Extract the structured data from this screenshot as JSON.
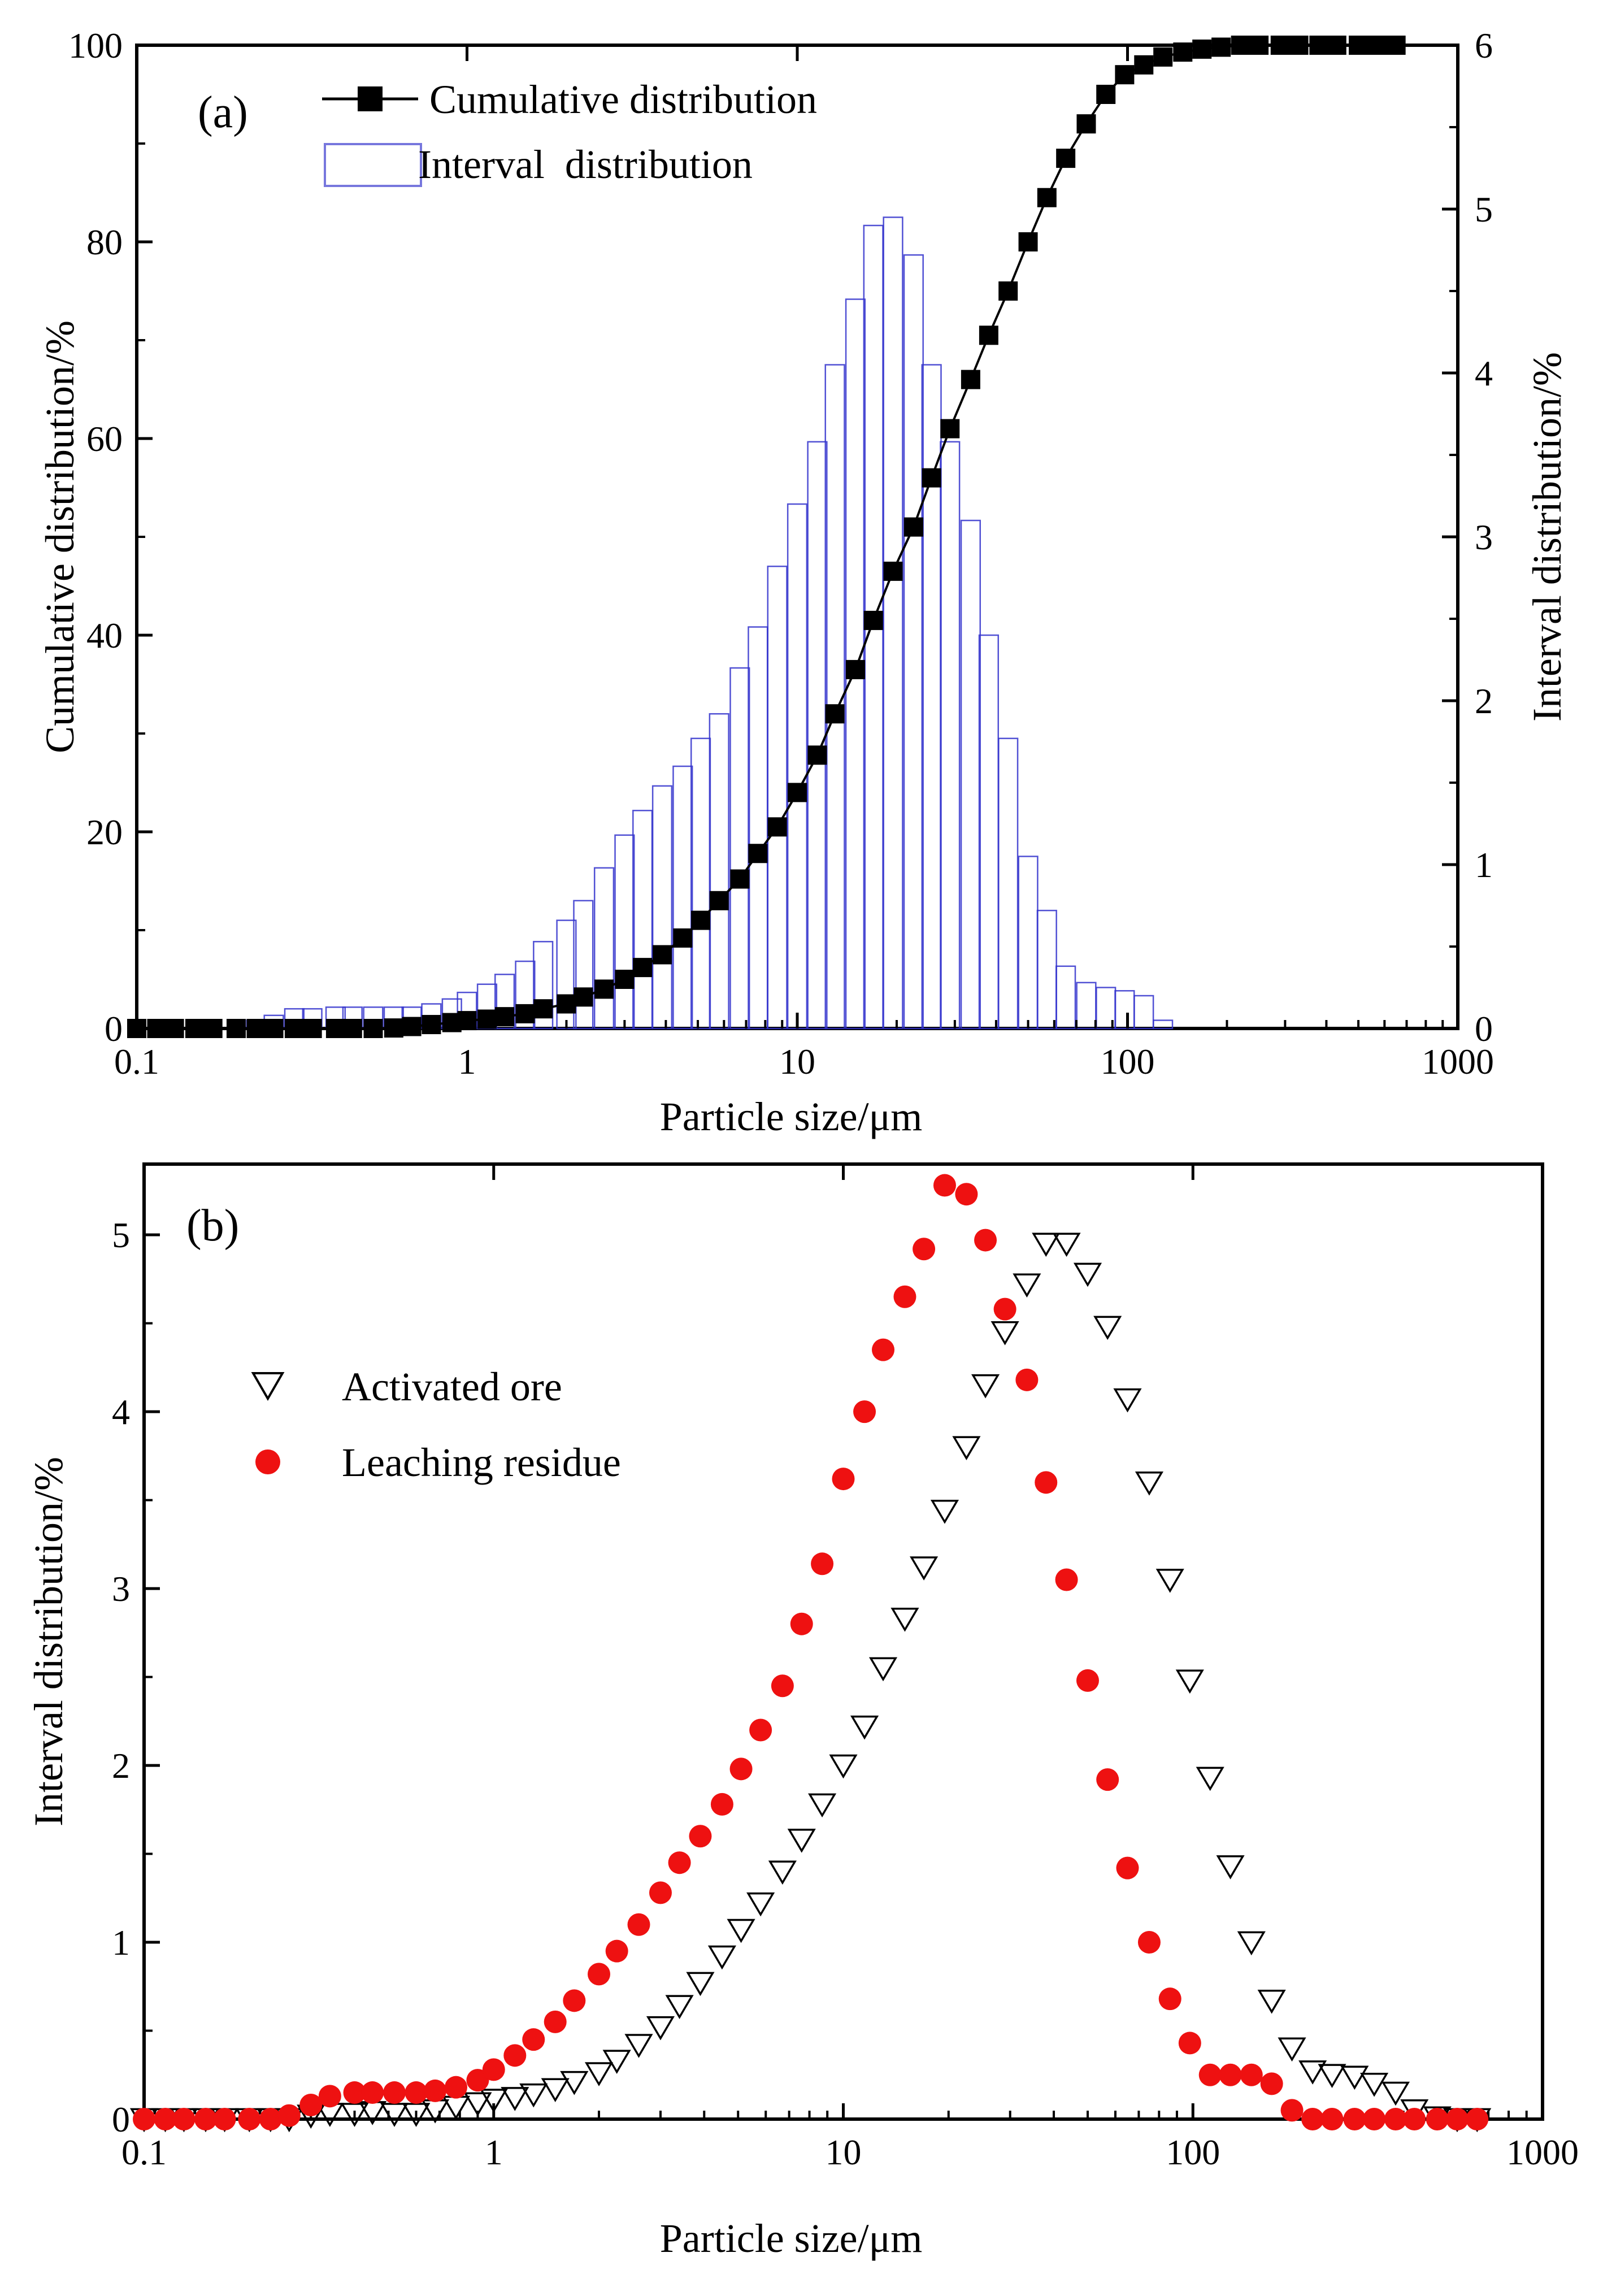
{
  "chart_data": [
    {
      "panel": "(a)",
      "type": "bar+line",
      "xlabel": "Particle size/μm",
      "ylabel": "Cumulative distribution/%",
      "y2label": "Interval distribution/%",
      "xscale": "log",
      "xlim": [
        0.1,
        1000
      ],
      "ylim": [
        0,
        100
      ],
      "y2lim": [
        0,
        6
      ],
      "xticks": [
        0.1,
        1,
        10,
        100,
        1000
      ],
      "xtick_labels": [
        "0.1",
        "1",
        "10",
        "100",
        "1000"
      ],
      "yticks": [
        0,
        20,
        40,
        60,
        80,
        100
      ],
      "ytick_labels": [
        "0",
        "20",
        "40",
        "60",
        "80",
        "100"
      ],
      "y2ticks": [
        0,
        1,
        2,
        3,
        4,
        5,
        6
      ],
      "y2tick_labels": [
        "0",
        "1",
        "2",
        "3",
        "4",
        "5",
        "6"
      ],
      "legend": {
        "position": "top-left",
        "entries": [
          "Cumulative distribution",
          "Interval  distribution"
        ]
      },
      "series": [
        {
          "name": "Cumulative distribution",
          "kind": "line+square-markers",
          "color": "#000000",
          "x": [
            0.1,
            0.115,
            0.13,
            0.15,
            0.17,
            0.2,
            0.23,
            0.26,
            0.3,
            0.34,
            0.4,
            0.45,
            0.52,
            0.6,
            0.68,
            0.78,
            0.9,
            1.0,
            1.15,
            1.3,
            1.5,
            1.7,
            2.0,
            2.25,
            2.6,
            3.0,
            3.4,
            3.9,
            4.5,
            5.1,
            5.8,
            6.7,
            7.6,
            8.7,
            10,
            11.5,
            13,
            15,
            17,
            19.5,
            22.5,
            25.5,
            29,
            33.5,
            38,
            43.5,
            50,
            57,
            65,
            75,
            86,
            98,
            112,
            128,
            147,
            168,
            192,
            220,
            250,
            290,
            330,
            380,
            430,
            500,
            570,
            650
          ],
          "values": [
            0,
            0,
            0,
            0,
            0,
            0,
            0,
            0,
            0,
            0,
            0,
            0,
            0,
            0.05,
            0.2,
            0.4,
            0.6,
            0.8,
            0.95,
            1.2,
            1.5,
            2.0,
            2.5,
            3.2,
            4.0,
            5.0,
            6.2,
            7.5,
            9.2,
            11.0,
            13.0,
            15.2,
            17.8,
            20.5,
            24.0,
            27.8,
            32.0,
            36.5,
            41.5,
            46.5,
            51.0,
            56.0,
            61.0,
            66.0,
            70.5,
            75.0,
            80.0,
            84.5,
            88.5,
            92.0,
            95.0,
            97.0,
            98.0,
            98.8,
            99.3,
            99.6,
            99.8,
            100,
            100,
            100,
            100,
            100,
            100,
            100,
            100,
            100
          ]
        },
        {
          "name": "Interval  distribution",
          "kind": "bar",
          "color": "#3333cc",
          "x": [
            0.1,
            0.115,
            0.13,
            0.15,
            0.17,
            0.2,
            0.23,
            0.26,
            0.3,
            0.34,
            0.4,
            0.45,
            0.52,
            0.6,
            0.68,
            0.78,
            0.9,
            1.0,
            1.15,
            1.3,
            1.5,
            1.7,
            2.0,
            2.25,
            2.6,
            3.0,
            3.4,
            3.9,
            4.5,
            5.1,
            5.8,
            6.7,
            7.6,
            8.7,
            10,
            11.5,
            13,
            15,
            17,
            19.5,
            22.5,
            25.5,
            29,
            33.5,
            38,
            43.5,
            50,
            57,
            65,
            75,
            86,
            98,
            112,
            128,
            147,
            168,
            192,
            220,
            250,
            290,
            330,
            380,
            430,
            500,
            570,
            650
          ],
          "values": [
            0,
            0,
            0,
            0,
            0,
            0,
            0.05,
            0.08,
            0.12,
            0.12,
            0.13,
            0.13,
            0.13,
            0.13,
            0.13,
            0.15,
            0.18,
            0.22,
            0.27,
            0.33,
            0.41,
            0.53,
            0.66,
            0.78,
            0.98,
            1.18,
            1.33,
            1.48,
            1.6,
            1.77,
            1.92,
            2.2,
            2.45,
            2.82,
            3.2,
            3.58,
            4.05,
            4.45,
            4.9,
            4.95,
            4.72,
            4.05,
            3.58,
            3.1,
            2.4,
            1.77,
            1.05,
            0.72,
            0.38,
            0.28,
            0.25,
            0.23,
            0.2,
            0.05,
            0,
            0,
            0,
            0,
            0,
            0,
            0,
            0,
            0,
            0,
            0,
            0
          ]
        }
      ]
    },
    {
      "panel": "(b)",
      "type": "scatter",
      "xlabel": "Particle size/μm",
      "ylabel": "Interval distribution/%",
      "xscale": "log",
      "xlim": [
        0.1,
        1000
      ],
      "ylim": [
        0,
        5.4
      ],
      "xticks": [
        0.1,
        1,
        10,
        100,
        1000
      ],
      "xtick_labels": [
        "0.1",
        "1",
        "10",
        "100",
        "1000"
      ],
      "yticks": [
        0,
        1,
        2,
        3,
        4,
        5
      ],
      "ytick_labels": [
        "0",
        "1",
        "2",
        "3",
        "4",
        "5"
      ],
      "legend": {
        "position": "middle-left",
        "entries": [
          "Activated ore",
          "Leaching residue"
        ]
      },
      "series": [
        {
          "name": "Activated ore",
          "marker": "open-down-triangle",
          "color": "#000000",
          "x": [
            0.1,
            0.115,
            0.13,
            0.15,
            0.17,
            0.2,
            0.23,
            0.26,
            0.3,
            0.34,
            0.4,
            0.45,
            0.52,
            0.6,
            0.68,
            0.78,
            0.9,
            1.0,
            1.15,
            1.3,
            1.5,
            1.7,
            2.0,
            2.25,
            2.6,
            3.0,
            3.4,
            3.9,
            4.5,
            5.1,
            5.8,
            6.7,
            7.6,
            8.7,
            10,
            11.5,
            13,
            15,
            17,
            19.5,
            22.5,
            25.5,
            29,
            33.5,
            38,
            43.5,
            50,
            57,
            65,
            75,
            86,
            98,
            112,
            128,
            147,
            168,
            192,
            220,
            250,
            290,
            330,
            380,
            430,
            500,
            570,
            650
          ],
          "values": [
            0,
            0,
            0,
            0,
            0,
            0,
            0,
            0,
            0.02,
            0.03,
            0.03,
            0.04,
            0.03,
            0.03,
            0.05,
            0.07,
            0.09,
            0.11,
            0.12,
            0.14,
            0.17,
            0.21,
            0.26,
            0.33,
            0.42,
            0.52,
            0.64,
            0.77,
            0.92,
            1.07,
            1.22,
            1.4,
            1.58,
            1.78,
            2.0,
            2.22,
            2.55,
            2.83,
            3.12,
            3.44,
            3.8,
            4.15,
            4.45,
            4.72,
            4.95,
            4.95,
            4.78,
            4.48,
            4.07,
            3.6,
            3.05,
            2.48,
            1.93,
            1.43,
            1.0,
            0.67,
            0.4,
            0.27,
            0.25,
            0.24,
            0.2,
            0.15,
            0.05,
            0.01,
            0,
            0
          ]
        },
        {
          "name": "Leaching residue",
          "marker": "filled-circle",
          "color": "#ee1111",
          "x": [
            0.1,
            0.115,
            0.13,
            0.15,
            0.17,
            0.2,
            0.23,
            0.26,
            0.3,
            0.34,
            0.4,
            0.45,
            0.52,
            0.6,
            0.68,
            0.78,
            0.9,
            1.0,
            1.15,
            1.3,
            1.5,
            1.7,
            2.0,
            2.25,
            2.6,
            3.0,
            3.4,
            3.9,
            4.5,
            5.1,
            5.8,
            6.7,
            7.6,
            8.7,
            10,
            11.5,
            13,
            15,
            17,
            19.5,
            22.5,
            25.5,
            29,
            33.5,
            38,
            43.5,
            50,
            57,
            65,
            75,
            86,
            98,
            112,
            128,
            147,
            168,
            192,
            220,
            250,
            290,
            330,
            380,
            430,
            500,
            570,
            650
          ],
          "values": [
            0,
            0,
            0,
            0,
            0,
            0,
            0,
            0.02,
            0.08,
            0.13,
            0.15,
            0.15,
            0.15,
            0.15,
            0.16,
            0.18,
            0.22,
            0.28,
            0.36,
            0.45,
            0.55,
            0.67,
            0.82,
            0.95,
            1.1,
            1.28,
            1.45,
            1.6,
            1.78,
            1.98,
            2.2,
            2.45,
            2.8,
            3.14,
            3.62,
            4.0,
            4.35,
            4.65,
            4.92,
            5.28,
            5.23,
            4.97,
            4.58,
            4.18,
            3.6,
            3.05,
            2.48,
            1.92,
            1.42,
            1.0,
            0.68,
            0.43,
            0.25,
            0.25,
            0.25,
            0.2,
            0.05,
            0,
            0,
            0,
            0,
            0,
            0,
            0,
            0,
            0
          ]
        }
      ]
    }
  ]
}
